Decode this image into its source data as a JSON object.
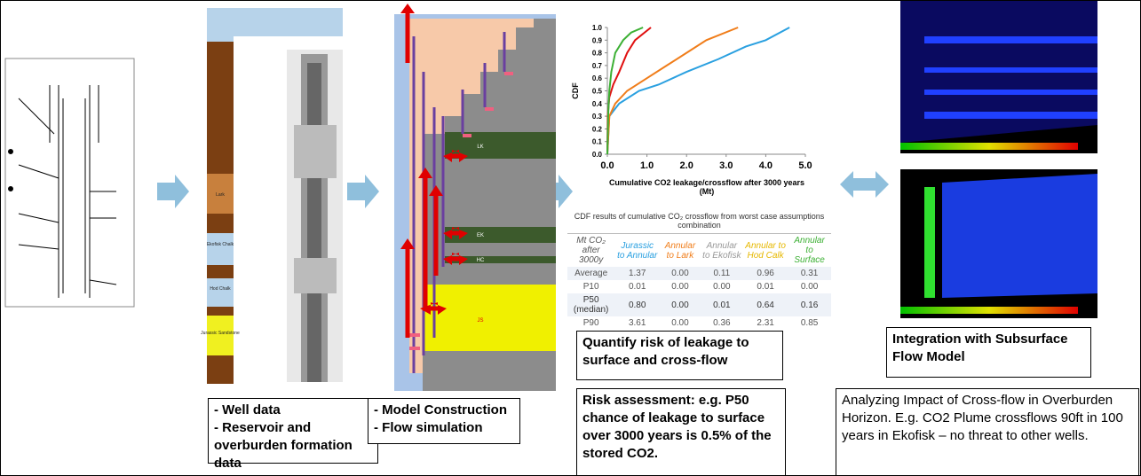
{
  "chart_data": {
    "type": "line",
    "ylabel": "CDF",
    "xlabel": "Cumulative CO2 leakage/crossflow after 3000 years (Mt)",
    "xlim": [
      0,
      5
    ],
    "ylim": [
      0,
      1
    ],
    "xticks": [
      {
        "value": 0,
        "label": "0.0"
      },
      {
        "value": 1,
        "label": "1.0"
      },
      {
        "value": 2,
        "label": "2.0"
      },
      {
        "value": 3,
        "label": "3.0"
      },
      {
        "value": 4,
        "label": "4.0"
      },
      {
        "value": 5,
        "label": "5.0"
      }
    ],
    "yticks": [
      {
        "value": 0,
        "label": "0.0"
      },
      {
        "value": 0.1,
        "label": "0.1"
      },
      {
        "value": 0.2,
        "label": "0.2"
      },
      {
        "value": 0.3,
        "label": "0.3"
      },
      {
        "value": 0.4,
        "label": "0.4"
      },
      {
        "value": 0.5,
        "label": "0.5"
      },
      {
        "value": 0.6,
        "label": "0.6"
      },
      {
        "value": 0.7,
        "label": "0.7"
      },
      {
        "value": 0.8,
        "label": "0.8"
      },
      {
        "value": 0.9,
        "label": "0.9"
      },
      {
        "value": 1,
        "label": "1.0"
      }
    ],
    "series": [
      {
        "color": "#2aa0e0",
        "x": [
          0,
          0.05,
          0.3,
          0.8,
          1.3,
          2.0,
          2.8,
          3.5,
          4.0,
          4.6
        ],
        "values": [
          0,
          0.3,
          0.4,
          0.5,
          0.55,
          0.65,
          0.75,
          0.85,
          0.9,
          1.0
        ]
      },
      {
        "color": "#f07d1a",
        "x": [
          0,
          0.05,
          0.2,
          0.5,
          1.0,
          1.5,
          2.0,
          2.5,
          3.3
        ],
        "values": [
          0,
          0.3,
          0.4,
          0.5,
          0.6,
          0.7,
          0.8,
          0.9,
          1.0
        ]
      },
      {
        "color": "#e01010",
        "x": [
          0,
          0.01,
          0.05,
          0.15,
          0.3,
          0.5,
          0.7,
          1.1
        ],
        "values": [
          0,
          0.3,
          0.45,
          0.55,
          0.65,
          0.8,
          0.9,
          1.0
        ]
      },
      {
        "color": "#3cb034",
        "x": [
          0,
          0.02,
          0.05,
          0.1,
          0.2,
          0.4,
          0.6,
          0.9
        ],
        "values": [
          0,
          0.3,
          0.5,
          0.65,
          0.8,
          0.9,
          0.96,
          1.0
        ]
      }
    ]
  },
  "well_log_layers": [
    "Lark",
    "Ekofisk Chalk",
    "Hod Chalk",
    "Jurassic Sandstone"
  ],
  "model_layers": [
    "LK",
    "EK",
    "HC",
    "JS"
  ],
  "table": {
    "caption": "CDF results of cumulative CO₂ crossflow from worst case assumptions combination",
    "header": [
      "Mt CO₂ after 3000y",
      "Jurassic to Annular",
      "Annular to Lark",
      "Annular to Ekofisk",
      "Annular to Hod Calk",
      "Annular to Surface"
    ],
    "rows": [
      [
        "Average",
        "1.37",
        "0.00",
        "0.11",
        "0.96",
        "0.31"
      ],
      [
        "P10",
        "0.01",
        "0.00",
        "0.00",
        "0.01",
        "0.00"
      ],
      [
        "P50 (median)",
        "0.80",
        "0.00",
        "0.01",
        "0.64",
        "0.16"
      ],
      [
        "P90",
        "3.61",
        "0.00",
        "0.36",
        "2.31",
        "0.85"
      ]
    ]
  },
  "boxes": {
    "well_data": [
      "- Well data",
      "- Reservoir and overburden formation data"
    ],
    "model": [
      "- Model Construction",
      "- Flow simulation"
    ],
    "quantify": "Quantify risk of leakage to surface and cross-flow",
    "risk": "Risk assessment: e.g. P50 chance of leakage to surface over 3000 years is 0.5% of the stored CO2.",
    "integration": "Integration with Subsurface Flow Model",
    "analyzing": "Analyzing Impact of Cross-flow in Overburden Horizon. E.g. CO2 Plume crossflows 90ft in 100 years in Ekofisk – no threat to other wells."
  }
}
